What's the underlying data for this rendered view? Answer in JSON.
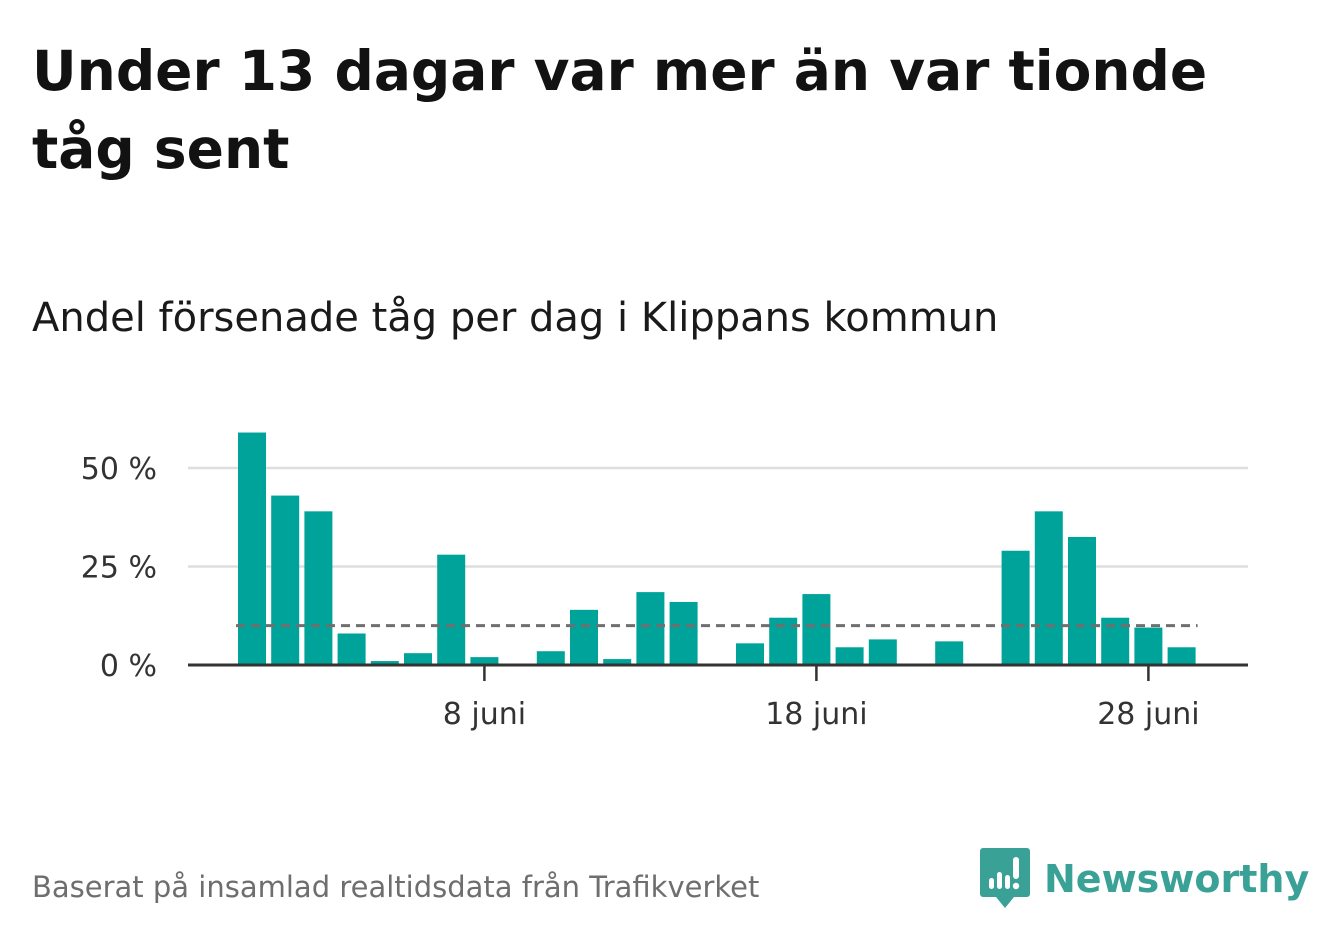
{
  "title": "Under 13 dagar var mer än var tionde tåg sent",
  "subtitle": "Andel försenade tåg per dag i Klippans kommun",
  "source": "Baserat på insamlad realtidsdata från Trafikverket",
  "brand": {
    "name": "Newsworthy",
    "icon": "newsworthy-logo-icon",
    "color": "#3aa196"
  },
  "chart_data": {
    "type": "bar",
    "x_unit": "juni",
    "days": [
      1,
      2,
      3,
      4,
      5,
      6,
      7,
      8,
      9,
      10,
      11,
      12,
      13,
      14,
      15,
      16,
      17,
      18,
      19,
      20,
      21,
      22,
      23,
      24,
      25,
      26,
      27,
      28,
      29
    ],
    "values": [
      59,
      43,
      39,
      8,
      1,
      3,
      28,
      2,
      0,
      3.5,
      14,
      1.5,
      18.5,
      16,
      0,
      5.5,
      12,
      18,
      4.5,
      6.5,
      0,
      6,
      0,
      29,
      39,
      32.5,
      12,
      9.5,
      4.5
    ],
    "bar_color": "#00a39a",
    "reference_line": {
      "value": 10,
      "style": "dashed",
      "color": "#6f6f70"
    },
    "yticks": [
      0,
      25,
      50
    ],
    "ytick_labels": [
      "0 %",
      "25 %",
      "50 %"
    ],
    "xticks": [
      8,
      18,
      28
    ],
    "xtick_labels": [
      "8 juni",
      "18 juni",
      "28 juni"
    ],
    "ylim": [
      0,
      60
    ],
    "grid": true
  }
}
